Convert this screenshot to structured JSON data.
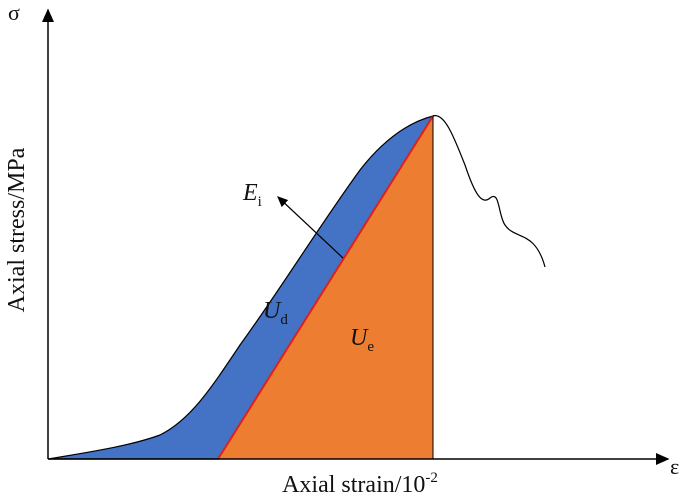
{
  "axes": {
    "y_symbol": "σ",
    "x_symbol": "ε",
    "y_label": "Axial stress/MPa",
    "x_label": {
      "text": "Axial strain/10",
      "superscript": "-2"
    }
  },
  "labels": [
    {
      "main": "E",
      "sub": "i"
    },
    {
      "main": "U",
      "sub": "d"
    },
    {
      "main": "U",
      "sub": "e"
    }
  ]
}
